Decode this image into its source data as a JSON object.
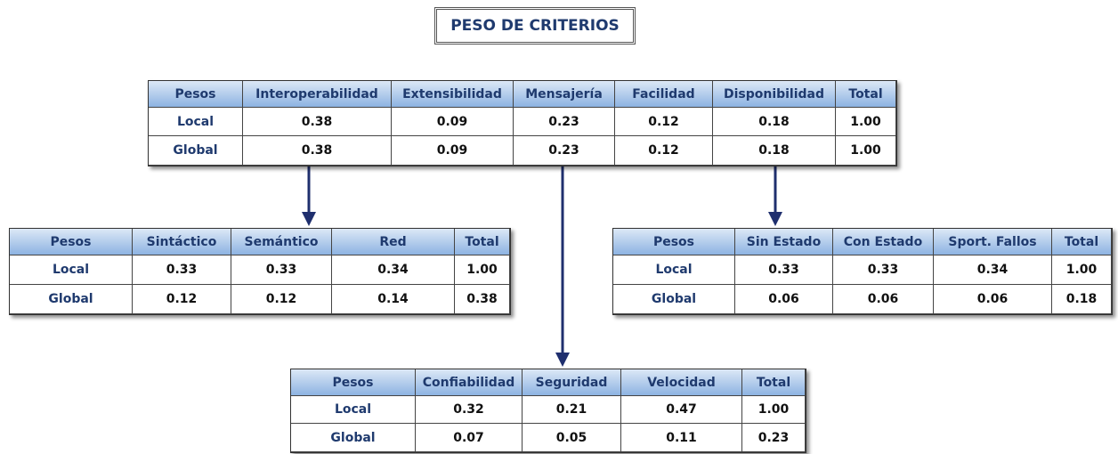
{
  "title": "PESO DE CRITERIOS",
  "tables": [
    {
      "header": [
        "Pesos",
        "Interoperabilidad",
        "Extensibilidad",
        "Mensajería",
        "Facilidad",
        "Disponibilidad",
        "Total"
      ],
      "rows": [
        [
          "Local",
          "0.38",
          "0.09",
          "0.23",
          "0.12",
          "0.18",
          "1.00"
        ],
        [
          "Global",
          "0.38",
          "0.09",
          "0.23",
          "0.12",
          "0.18",
          "1.00"
        ]
      ]
    },
    {
      "header": [
        "Pesos",
        "Sintáctico",
        "Semántico",
        "Red",
        "Total"
      ],
      "rows": [
        [
          "Local",
          "0.33",
          "0.33",
          "0.34",
          "1.00"
        ],
        [
          "Global",
          "0.12",
          "0.12",
          "0.14",
          "0.38"
        ]
      ]
    },
    {
      "header": [
        "Pesos",
        "Sin Estado",
        "Con Estado",
        "Sport. Fallos",
        "Total"
      ],
      "rows": [
        [
          "Local",
          "0.33",
          "0.33",
          "0.34",
          "1.00"
        ],
        [
          "Global",
          "0.06",
          "0.06",
          "0.06",
          "0.18"
        ]
      ]
    },
    {
      "header": [
        "Pesos",
        "Confiabilidad",
        "Seguridad",
        "Velocidad",
        "Total"
      ],
      "rows": [
        [
          "Local",
          "0.32",
          "0.21",
          "0.47",
          "1.00"
        ],
        [
          "Global",
          "0.07",
          "0.05",
          "0.11",
          "0.23"
        ]
      ]
    }
  ]
}
